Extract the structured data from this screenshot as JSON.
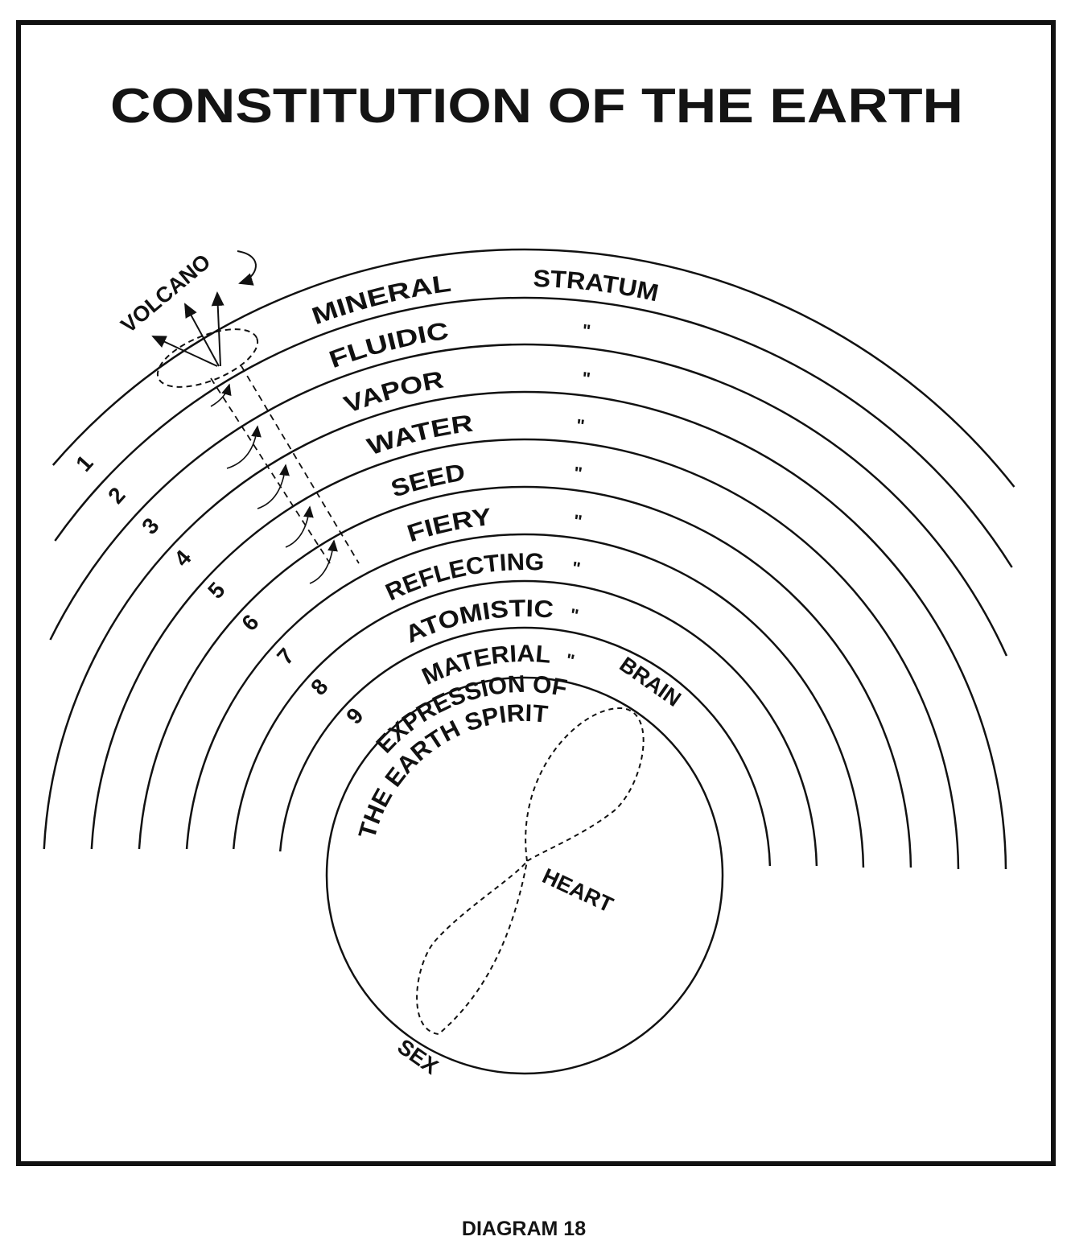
{
  "title": "CONSTITUTION OF THE EARTH",
  "caption": "DIAGRAM 18",
  "colors": {
    "ink": "#111111",
    "paper": "#ffffff"
  },
  "strata": [
    {
      "number": "1",
      "name": "MINERAL",
      "suffix": "STRATUM"
    },
    {
      "number": "2",
      "name": "FLUIDIC",
      "suffix": "\""
    },
    {
      "number": "3",
      "name": "VAPOR",
      "suffix": "\""
    },
    {
      "number": "4",
      "name": "WATER",
      "suffix": "\""
    },
    {
      "number": "5",
      "name": "SEED",
      "suffix": "\""
    },
    {
      "number": "6",
      "name": "FIERY",
      "suffix": "\""
    },
    {
      "number": "7",
      "name": "REFLECTING",
      "suffix": "\""
    },
    {
      "number": "8",
      "name": "ATOMISTIC",
      "suffix": "\""
    },
    {
      "number": "9",
      "name": "MATERIAL",
      "suffix": "\""
    }
  ],
  "labels": {
    "volcano": "VOLCANO",
    "expression_line1": "EXPRESSION OF",
    "expression_line2": "THE EARTH SPIRIT",
    "brain": "BRAIN",
    "heart": "HEART",
    "sex": "SEX"
  }
}
